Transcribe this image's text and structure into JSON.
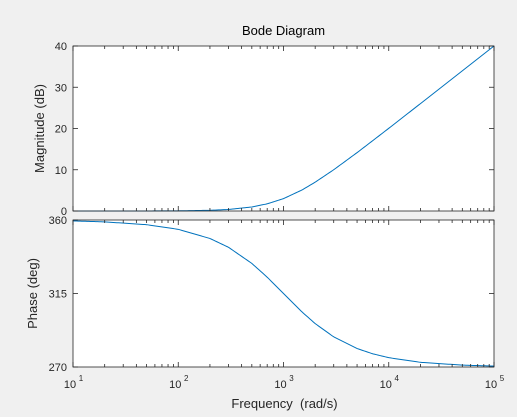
{
  "chart_data": [
    {
      "type": "line",
      "title": "Bode Diagram",
      "ylabel": "Magnitude (dB)",
      "xscale": "log",
      "xlim": [
        10,
        100000
      ],
      "ylim": [
        0,
        40
      ],
      "yticks": [
        "0",
        "10",
        "20",
        "30",
        "40"
      ],
      "grid": false,
      "series": [
        {
          "color": "#0072bd",
          "x": [
            10,
            20,
            50,
            100,
            200,
            300,
            500,
            700,
            1000,
            1500,
            2000,
            3000,
            5000,
            7000,
            10000,
            20000,
            50000,
            100000
          ],
          "y": [
            0,
            0,
            0.01,
            0.04,
            0.17,
            0.37,
            0.97,
            1.74,
            3.0,
            5.1,
            6.99,
            10.0,
            14.15,
            17.0,
            20.04,
            26.03,
            33.98,
            40.0
          ]
        }
      ]
    },
    {
      "type": "line",
      "xlabel": "Frequency  (rad/s)",
      "ylabel": "Phase (deg)",
      "xscale": "log",
      "xlim": [
        10,
        100000
      ],
      "ylim": [
        270,
        360
      ],
      "yticks": [
        "270",
        "315",
        "360"
      ],
      "xticks": [
        {
          "base": "10",
          "exp": "1"
        },
        {
          "base": "10",
          "exp": "2"
        },
        {
          "base": "10",
          "exp": "3"
        },
        {
          "base": "10",
          "exp": "4"
        },
        {
          "base": "10",
          "exp": "5"
        }
      ],
      "grid": false,
      "series": [
        {
          "color": "#0072bd",
          "x": [
            10,
            20,
            50,
            100,
            200,
            300,
            500,
            700,
            1000,
            1500,
            2000,
            3000,
            5000,
            7000,
            10000,
            20000,
            50000,
            100000
          ],
          "y": [
            359.43,
            358.85,
            357.14,
            354.29,
            348.69,
            343.3,
            333.43,
            324.99,
            315.0,
            303.69,
            296.57,
            288.43,
            281.31,
            278.13,
            275.71,
            272.86,
            271.15,
            270.57
          ]
        }
      ]
    }
  ]
}
